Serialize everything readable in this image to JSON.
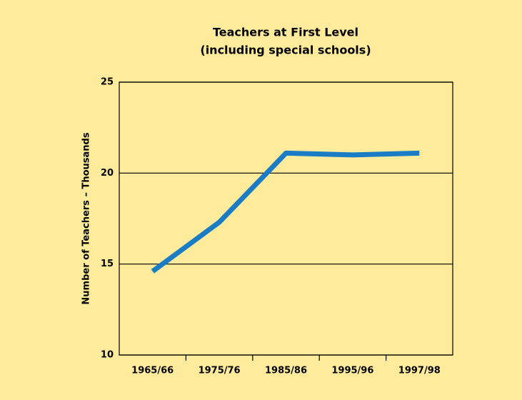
{
  "chart_data": {
    "type": "line",
    "title": "Teachers at First Level",
    "subtitle": "(including special schools)",
    "y_label": "Number of Teachers – Thousands",
    "categories": [
      "1965/66",
      "1975/76",
      "1985/86",
      "1995/96",
      "1997/98"
    ],
    "series": [
      {
        "name": "Teachers",
        "color": "#1a7cc4",
        "values": [
          14.6,
          17.3,
          21.1,
          21.0,
          21.1
        ]
      }
    ],
    "ylim": [
      10,
      25
    ],
    "yticks": [
      10,
      15,
      20,
      25
    ],
    "grid": true,
    "background": "#feeb9c"
  }
}
